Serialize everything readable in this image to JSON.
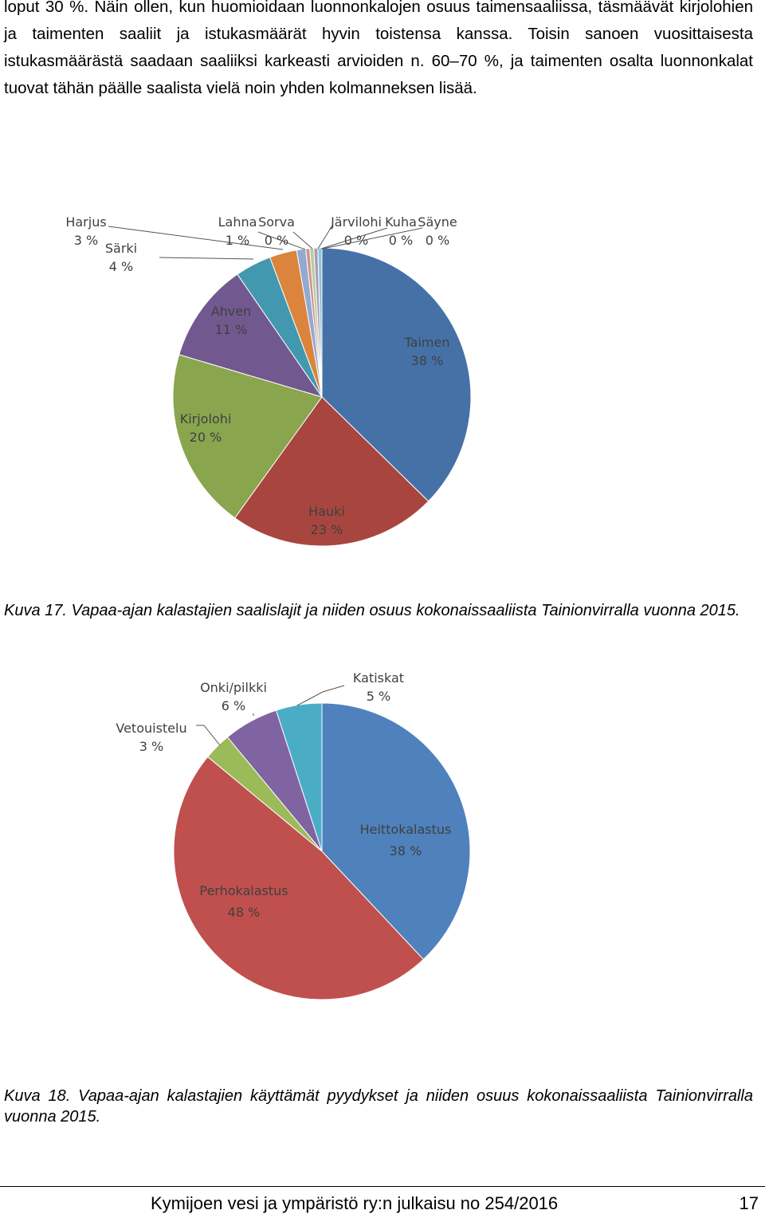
{
  "body_text": "loput 30 %. Näin ollen, kun huomioidaan luonnonkalojen osuus taimensaaliissa, täsmäävät kirjolohien ja taimenten saaliit ja istukasmäärät hyvin toistensa kanssa. Toisin sanoen vuosittaisesta istukasmäärästä saadaan saaliiksi karkeasti arvioiden n. 60–70 %, ja taimenten osalta luonnonkalat tuovat tähän päälle saalista vielä noin yhden kolmanneksen lisää.",
  "captions": {
    "fig17": "Kuva 17. Vapaa-ajan kalastajien saalislajit ja niiden osuus kokonaissaaliista Tainionvirralla vuonna 2015.",
    "fig18": "Kuva 18. Vapaa-ajan kalastajien käyttämät pyydykset ja niiden osuus kokonaissaaliista Tainionvirralla vuonna 2015."
  },
  "footer": {
    "title": "Kymijoen vesi ja ympäristö ry:n julkaisu no 254/2016",
    "page": "17"
  },
  "chart_data": [
    {
      "type": "pie",
      "categories": [
        "Taimen",
        "Hauki",
        "Kirjolohi",
        "Ahven",
        "Särki",
        "Harjus",
        "Lahna",
        "Sorva",
        "Järvilohi",
        "Kuha",
        "Säyne"
      ],
      "values": [
        38,
        23,
        20,
        11,
        4,
        3,
        1,
        0,
        0,
        0,
        0
      ],
      "value_labels": [
        "38 %",
        "23 %",
        "20 %",
        "11 %",
        "4 %",
        "3 %",
        "1 %",
        "0 %",
        "0 %",
        "0 %",
        "0 %"
      ],
      "colors": [
        "#4571a7",
        "#a9453f",
        "#89a54e",
        "#71588f",
        "#4298af",
        "#db843d",
        "#93a9cf",
        "#d19392",
        "#b9cd96",
        "#a99bbd",
        "#92c3d4"
      ]
    },
    {
      "type": "pie",
      "categories": [
        "Heittokalastus",
        "Perhokalastus",
        "Vetouistelu",
        "Onki/pilkki",
        "Katiskat"
      ],
      "values": [
        38,
        48,
        3,
        6,
        5
      ],
      "value_labels": [
        "38 %",
        "48 %",
        "3 %",
        "6 %",
        "5 %"
      ],
      "colors": [
        "#4f81bd",
        "#c0504d",
        "#9bbb59",
        "#8064a2",
        "#4bacc6"
      ]
    }
  ]
}
